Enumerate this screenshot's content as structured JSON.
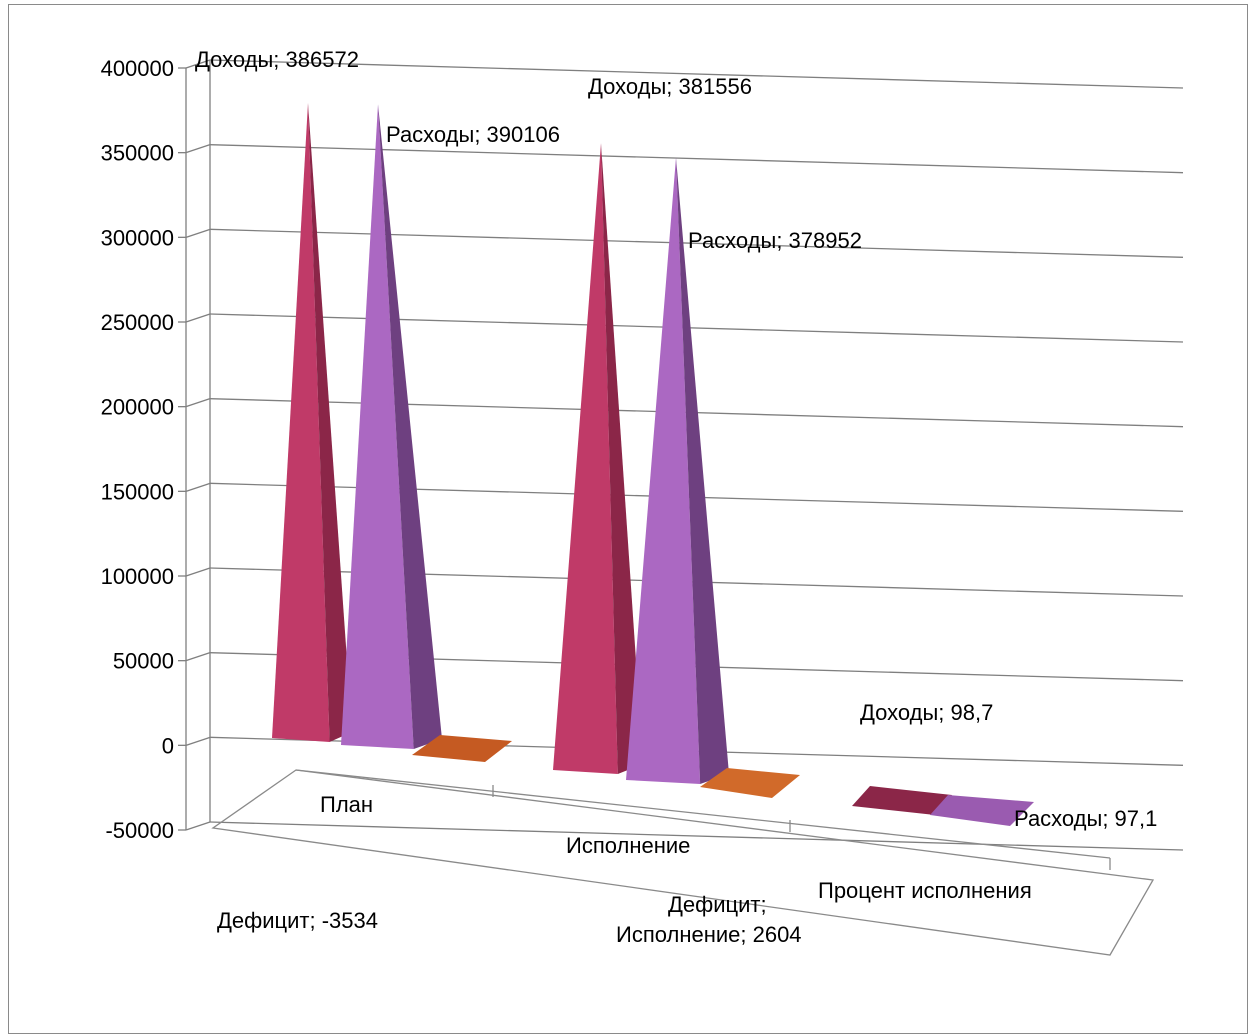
{
  "chart_data": {
    "type": "bar",
    "subtype": "3d-pyramid",
    "title": "",
    "xlabel": "",
    "ylabel": "",
    "ylim": [
      -50000,
      400000
    ],
    "ytick_step": 50000,
    "y_ticks": [
      "-50000",
      "0",
      "50000",
      "100000",
      "150000",
      "200000",
      "250000",
      "300000",
      "350000",
      "400000"
    ],
    "grid": true,
    "legend": "none",
    "categories": [
      "План",
      "Исполнение",
      "Процент исполнения"
    ],
    "series": [
      {
        "name": "Доходы",
        "color": "#c03a68",
        "values": [
          386572,
          381556,
          98.7
        ]
      },
      {
        "name": "Расходы",
        "color": "#ab68c2",
        "values": [
          390106,
          378952,
          97.1
        ]
      },
      {
        "name": "Дефицит",
        "color": "#c55a22",
        "values": [
          -3534,
          2604,
          null
        ]
      }
    ],
    "data_labels": [
      "Доходы; 386572",
      "Расходы; 390106",
      "Доходы; 381556",
      "Расходы; 378952",
      "Доходы; 98,7",
      "Расходы; 97,1",
      "Дефицит; -3534",
      "Дефицит;",
      "Исполнение; 2604"
    ]
  }
}
